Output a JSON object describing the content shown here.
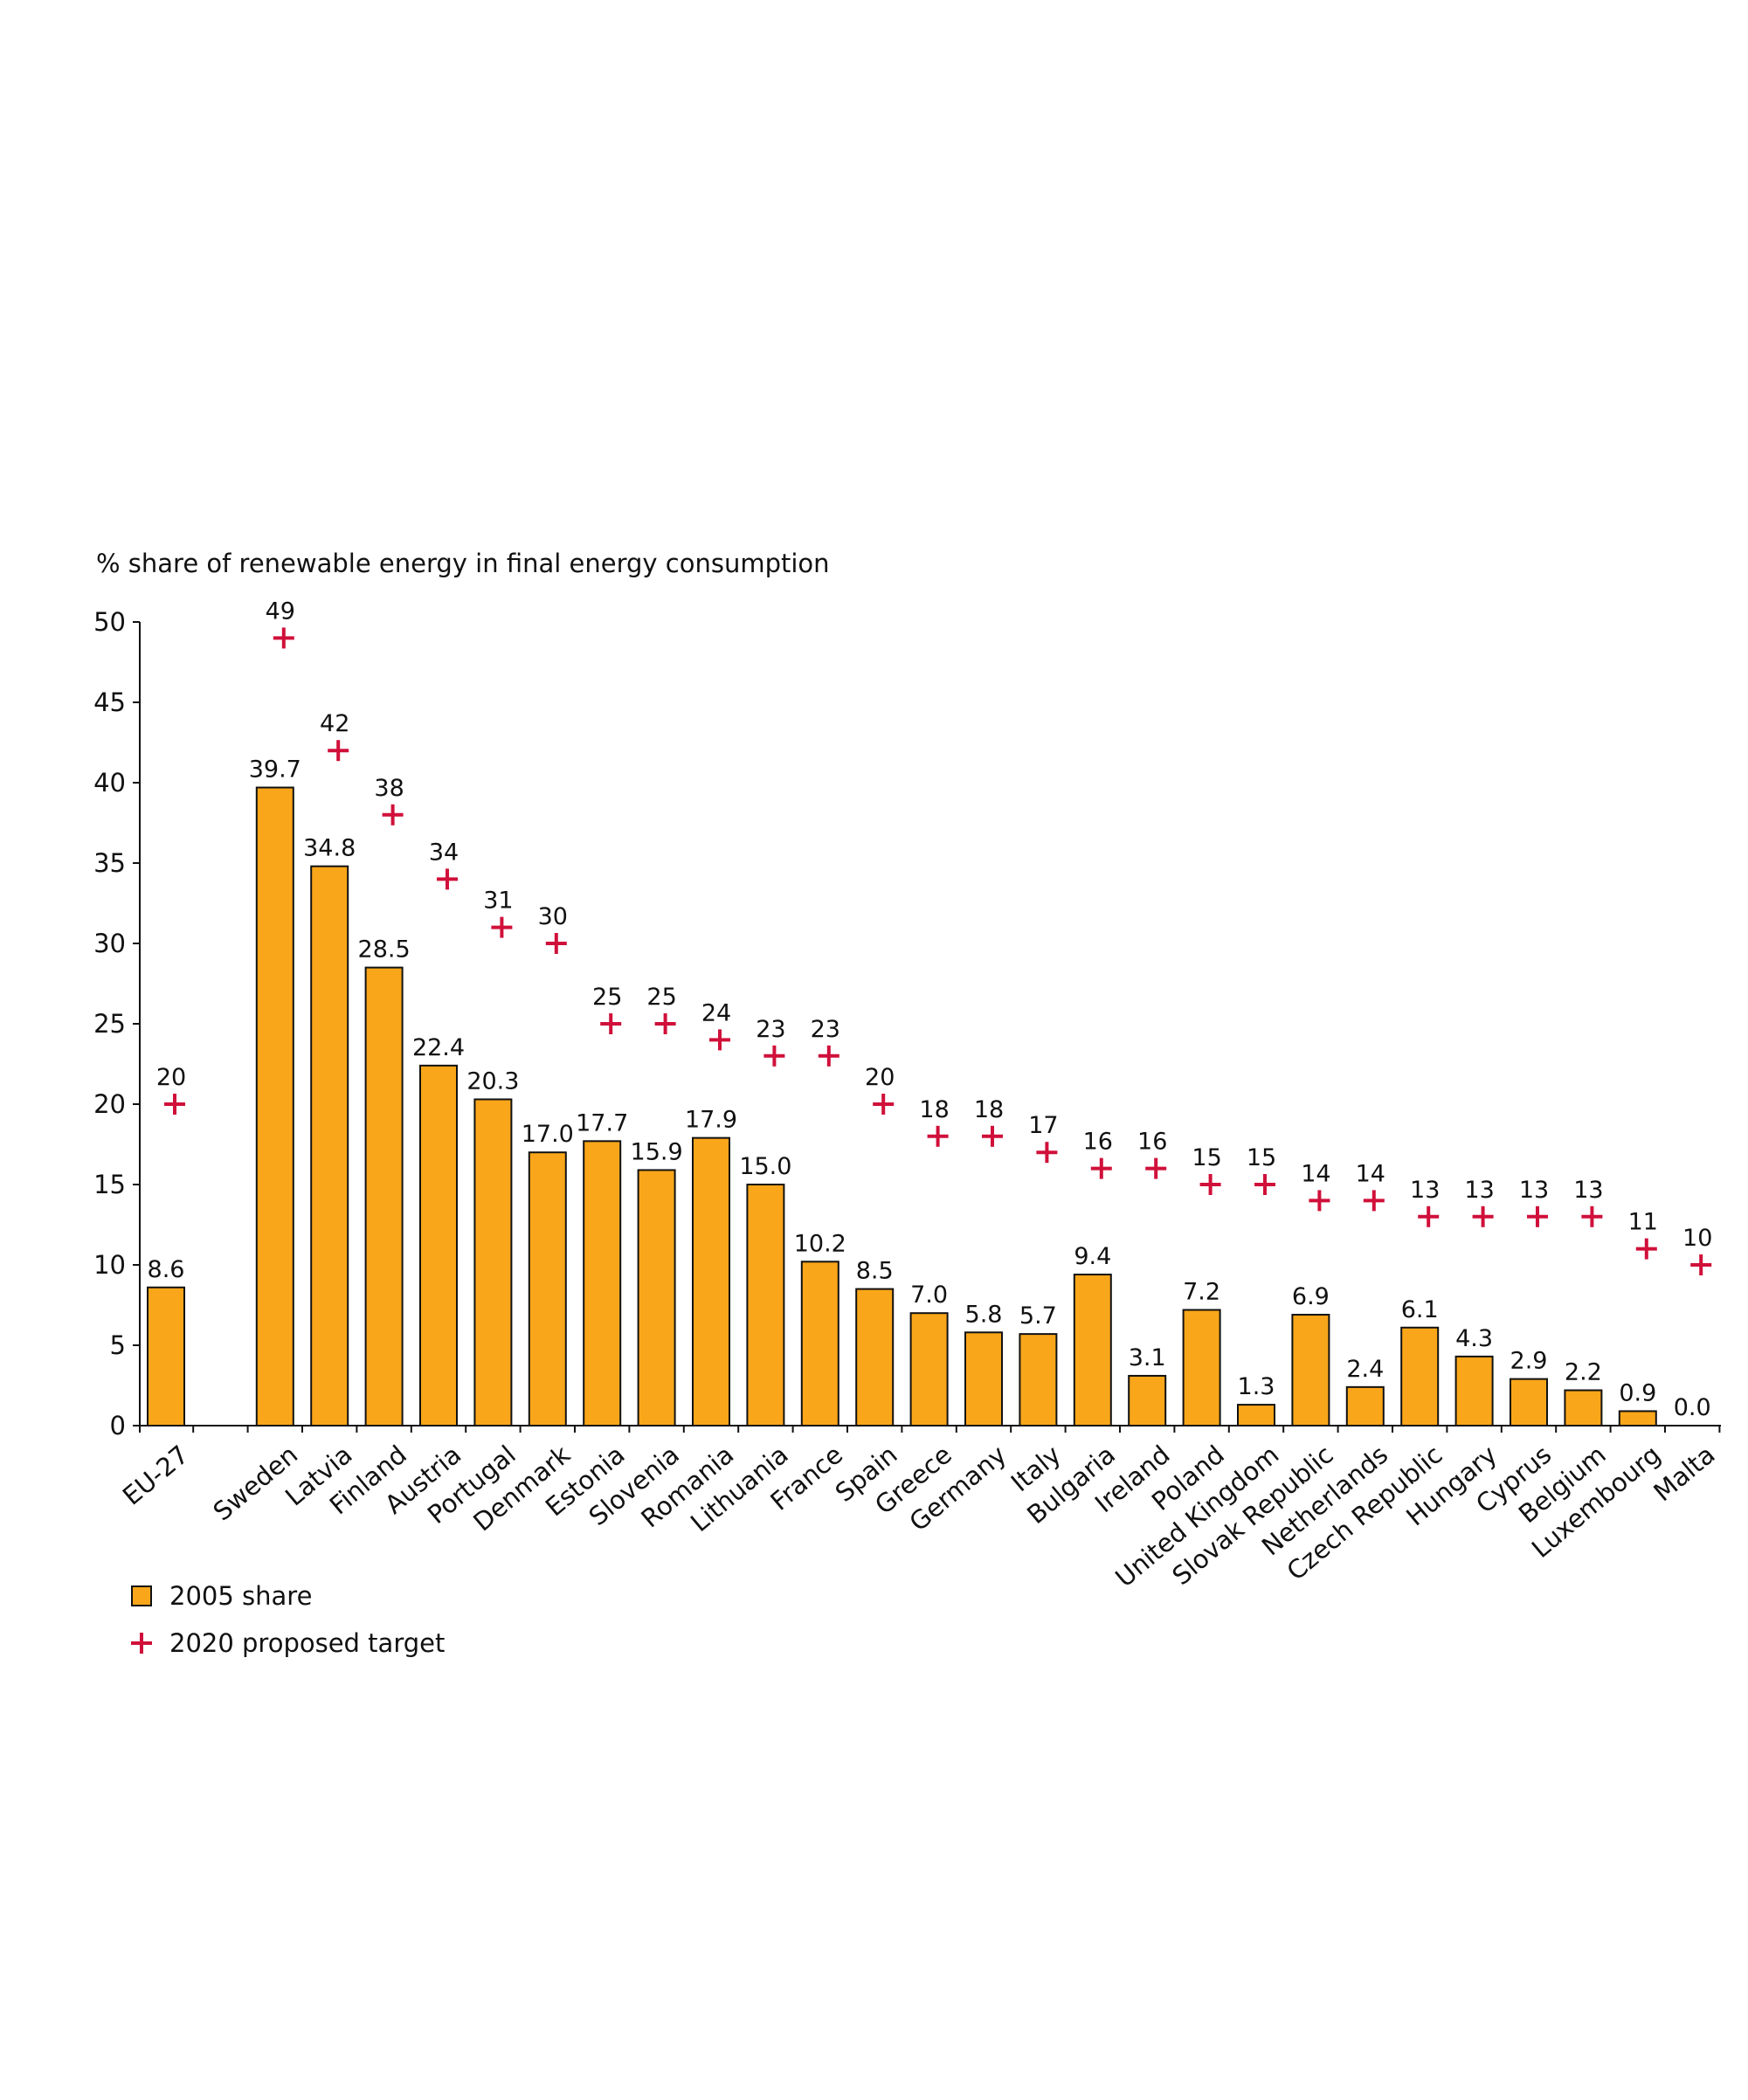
{
  "chart_data": {
    "type": "bar",
    "ylabel": "% share of renewable energy in final energy consumption",
    "ylim": [
      0,
      50
    ],
    "yticks": [
      0,
      5,
      10,
      15,
      20,
      25,
      30,
      35,
      40,
      45,
      50
    ],
    "grid": false,
    "legend_placement": "bottom-left",
    "categories": [
      "EU-27",
      "",
      "Sweden",
      "Latvia",
      "Finland",
      "Austria",
      "Portugal",
      "Denmark",
      "Estonia",
      "Slovenia",
      "Romania",
      "Lithuania",
      "France",
      "Spain",
      "Greece",
      "Germany",
      "Italy",
      "Bulgaria",
      "Ireland",
      "Poland",
      "United Kingdom",
      "Slovak Republic",
      "Netherlands",
      "Czech Republic",
      "Hungary",
      "Cyprus",
      "Belgium",
      "Luxembourg",
      "Malta"
    ],
    "series": [
      {
        "name": "2005 share",
        "type": "bar",
        "color": "#faa61a",
        "values": [
          8.6,
          null,
          39.7,
          34.8,
          28.5,
          22.4,
          20.3,
          17.0,
          17.7,
          15.9,
          17.9,
          15.0,
          10.2,
          8.5,
          7.0,
          5.8,
          5.7,
          9.4,
          3.1,
          7.2,
          1.3,
          6.9,
          2.4,
          6.1,
          4.3,
          2.9,
          2.2,
          0.9,
          0.0
        ],
        "labels": [
          "8.6",
          "",
          "39.7",
          "34.8",
          "28.5",
          "22.4",
          "20.3",
          "17.0",
          "17.7",
          "15.9",
          "17.9",
          "15.0",
          "10.2",
          "8.5",
          "7.0",
          "5.8",
          "5.7",
          "9.4",
          "3.1",
          "7.2",
          "1.3",
          "6.9",
          "2.4",
          "6.1",
          "4.3",
          "2.9",
          "2.2",
          "0.9",
          "0.0"
        ]
      },
      {
        "name": "2020 proposed target",
        "type": "scatter",
        "color": "#d0103a",
        "values": [
          20,
          null,
          49,
          42,
          38,
          34,
          31,
          30,
          25,
          25,
          24,
          23,
          23,
          20,
          18,
          18,
          17,
          16,
          16,
          15,
          15,
          14,
          14,
          13,
          13,
          13,
          13,
          11,
          10
        ],
        "labels": [
          "20",
          "",
          "49",
          "42",
          "38",
          "34",
          "31",
          "30",
          "25",
          "25",
          "24",
          "23",
          "23",
          "20",
          "18",
          "18",
          "17",
          "16",
          "16",
          "15",
          "15",
          "14",
          "14",
          "13",
          "13",
          "13",
          "13",
          "11",
          "10"
        ]
      }
    ]
  }
}
